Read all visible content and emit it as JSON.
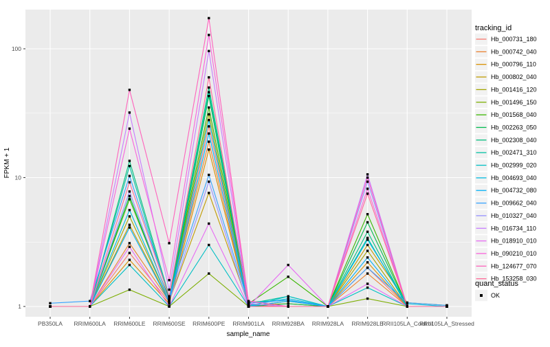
{
  "figure": {
    "background": "#FFFFFF",
    "panel_background": "#EBEBEB",
    "grid_color": "#FFFFFF",
    "axis_text_color": "#4D4D4D",
    "tick_mark_color": "#333333",
    "point_color": "#000000"
  },
  "chart_data": {
    "type": "line",
    "title": "",
    "xlabel": "sample_name",
    "ylabel": "FPKM + 1",
    "y_scale": "log10",
    "y_tick_values": [
      1,
      10,
      100
    ],
    "y_tick_labels": [
      "1",
      "10",
      "100"
    ],
    "y_minor_values": [
      3.162,
      31.62
    ],
    "ylim_log10": [
      -0.08,
      2.3
    ],
    "grid": "on",
    "legend_position": "right",
    "point_marker": "filled-black-square",
    "categories": [
      "PB350LA",
      "RRIM600LA",
      "RRIM600LE",
      "RRIM600SE",
      "RRIM600PE",
      "RRIM901LA",
      "RRIM928BA",
      "RRIM928LA",
      "RRIM928LE",
      "RRII105LA_Control",
      "RRII105LA_Stressed"
    ],
    "series": [
      {
        "name": "Hb_000731_180",
        "color": "#F8766D",
        "values": [
          1,
          1,
          2.6,
          1.08,
          25,
          1.02,
          1,
          1,
          2.0,
          1,
          1
        ]
      },
      {
        "name": "Hb_000742_040",
        "color": "#EA8331",
        "values": [
          1,
          1,
          3.1,
          1.1,
          19,
          1,
          1,
          1,
          1.8,
          1,
          1
        ]
      },
      {
        "name": "Hb_000796_110",
        "color": "#D89000",
        "values": [
          1,
          1,
          2.3,
          1.05,
          16.5,
          1,
          1,
          1,
          2.2,
          1,
          1
        ]
      },
      {
        "name": "Hb_000802_040",
        "color": "#C09B00",
        "values": [
          1,
          1,
          4.3,
          1.1,
          7.6,
          1.03,
          1.05,
          1,
          3.0,
          1.07,
          1.02
        ]
      },
      {
        "name": "Hb_001416_120",
        "color": "#A3A500",
        "values": [
          1,
          1,
          5.0,
          1.12,
          31,
          1,
          1.1,
          1,
          2.7,
          1,
          1
        ]
      },
      {
        "name": "Hb_001496_150",
        "color": "#7CAE00",
        "values": [
          1,
          1,
          1.35,
          1,
          1.8,
          1,
          1,
          1,
          1.15,
          1,
          1
        ]
      },
      {
        "name": "Hb_001568_040",
        "color": "#39B600",
        "values": [
          1,
          1,
          6.8,
          1.15,
          35,
          1.05,
          1.7,
          1,
          5.2,
          1,
          1
        ]
      },
      {
        "name": "Hb_002263_050",
        "color": "#00BB4E",
        "values": [
          1,
          1,
          7.2,
          1.12,
          43,
          1,
          1.05,
          1,
          4.5,
          1,
          1
        ]
      },
      {
        "name": "Hb_002308_040",
        "color": "#00BF7D",
        "values": [
          1,
          1,
          13.5,
          1.2,
          50,
          1.08,
          1.12,
          1,
          3.8,
          1,
          1
        ]
      },
      {
        "name": "Hb_002471_310",
        "color": "#00C1A3",
        "values": [
          1,
          1,
          12.3,
          1.15,
          46,
          1.05,
          1.2,
          1,
          3.4,
          1,
          1
        ]
      },
      {
        "name": "Hb_002999_020",
        "color": "#00BFC4",
        "values": [
          1,
          1,
          2.1,
          1,
          3.0,
          1,
          1.2,
          1,
          1.4,
          1,
          1
        ]
      },
      {
        "name": "Hb_004693_040",
        "color": "#00BAE0",
        "values": [
          1,
          1,
          5.6,
          1.1,
          28,
          1.02,
          1.15,
          1,
          3.3,
          1.05,
          1
        ]
      },
      {
        "name": "Hb_004732_080",
        "color": "#00B0F6",
        "values": [
          1,
          1,
          4.1,
          1.08,
          22,
          1,
          1.1,
          1,
          2.4,
          1,
          1
        ]
      },
      {
        "name": "Hb_009662_040",
        "color": "#35A2FF",
        "values": [
          1.06,
          1.1,
          10.3,
          1.2,
          10.5,
          1.06,
          1.12,
          1,
          2.0,
          1.07,
          1.02
        ]
      },
      {
        "name": "Hb_010327_040",
        "color": "#9590FF",
        "values": [
          1,
          1,
          7.8,
          1.1,
          9.3,
          1,
          1,
          1,
          9.3,
          1,
          1
        ]
      },
      {
        "name": "Hb_016734_110",
        "color": "#C77CFF",
        "values": [
          1,
          1,
          32,
          1.35,
          96,
          1.05,
          1,
          1,
          10.6,
          1,
          1
        ]
      },
      {
        "name": "Hb_018910_010",
        "color": "#E76BF3",
        "values": [
          1,
          1,
          2.9,
          1,
          4.4,
          1,
          2.1,
          1,
          1.5,
          1,
          1
        ]
      },
      {
        "name": "Hb_090210_010",
        "color": "#FA62DB",
        "values": [
          1,
          1,
          24,
          1.6,
          128,
          1.1,
          1,
          1,
          8.2,
          1,
          1
        ]
      },
      {
        "name": "Hb_124677_070",
        "color": "#FF62BC",
        "values": [
          1,
          1,
          48,
          3.1,
          173,
          1.1,
          1,
          1,
          10.0,
          1,
          1
        ]
      },
      {
        "name": "Hb_153258_030",
        "color": "#FF6A98",
        "values": [
          1,
          1,
          9.2,
          1.2,
          60,
          1,
          1,
          1,
          7.5,
          1,
          1
        ]
      }
    ],
    "legend": {
      "color_title": "tracking_id",
      "shape_title": "quant_status",
      "shape_items": [
        {
          "label": "OK",
          "marker": "black-square"
        }
      ],
      "key_background": "#F2F2F2"
    }
  }
}
